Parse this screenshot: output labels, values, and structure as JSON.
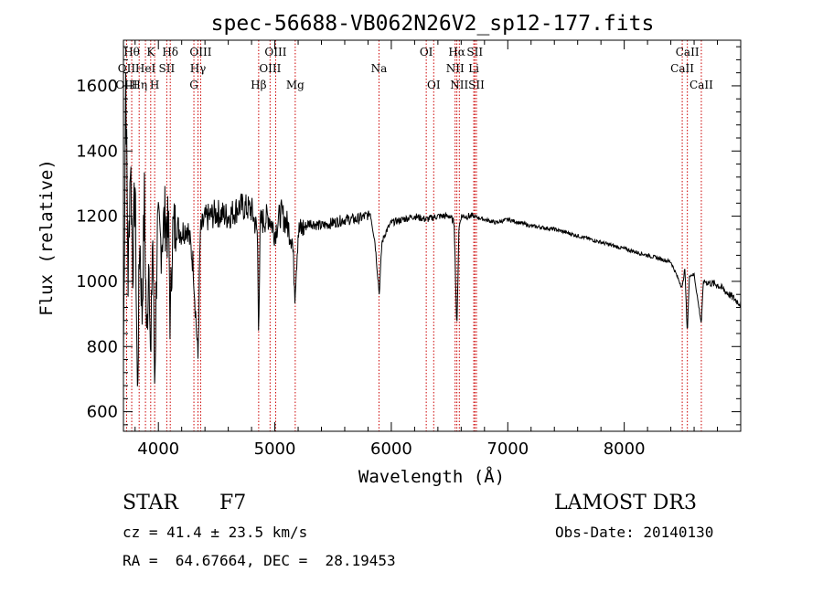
{
  "chart_data": {
    "type": "line",
    "title": "spec-56688-VB062N26V2_sp12-177.fits",
    "xlabel": "Wavelength (Å)",
    "ylabel": "Flux (relative)",
    "xlim": [
      3700,
      9000
    ],
    "ylim": [
      540,
      1740
    ],
    "xticks": [
      4000,
      5000,
      6000,
      7000,
      8000
    ],
    "yticks": [
      600,
      800,
      1000,
      1200,
      1400,
      1600
    ],
    "spectrum_anchor_points": [
      [
        3700,
        760
      ],
      [
        3720,
        1640
      ],
      [
        3740,
        1000
      ],
      [
        3760,
        1380
      ],
      [
        3780,
        1050
      ],
      [
        3800,
        1300
      ],
      [
        3820,
        640
      ],
      [
        3840,
        1150
      ],
      [
        3860,
        900
      ],
      [
        3880,
        1250
      ],
      [
        3900,
        800
      ],
      [
        3920,
        1130
      ],
      [
        3934,
        690
      ],
      [
        3950,
        1180
      ],
      [
        3968,
        700
      ],
      [
        3990,
        1150
      ],
      [
        4020,
        1120
      ],
      [
        4060,
        1200
      ],
      [
        4090,
        1130
      ],
      [
        4102,
        860
      ],
      [
        4120,
        1150
      ],
      [
        4160,
        1170
      ],
      [
        4200,
        1150
      ],
      [
        4250,
        1170
      ],
      [
        4300,
        1050
      ],
      [
        4320,
        900
      ],
      [
        4340,
        760
      ],
      [
        4360,
        1150
      ],
      [
        4400,
        1190
      ],
      [
        4500,
        1210
      ],
      [
        4600,
        1200
      ],
      [
        4700,
        1230
      ],
      [
        4800,
        1220
      ],
      [
        4850,
        1150
      ],
      [
        4861,
        860
      ],
      [
        4875,
        1180
      ],
      [
        4950,
        1200
      ],
      [
        5000,
        1150
      ],
      [
        5050,
        1210
      ],
      [
        5100,
        1180
      ],
      [
        5150,
        1130
      ],
      [
        5172,
        970
      ],
      [
        5200,
        1150
      ],
      [
        5300,
        1180
      ],
      [
        5400,
        1170
      ],
      [
        5500,
        1180
      ],
      [
        5600,
        1190
      ],
      [
        5700,
        1190
      ],
      [
        5780,
        1200
      ],
      [
        5820,
        1210
      ],
      [
        5860,
        1120
      ],
      [
        5890,
        990
      ],
      [
        5896,
        960
      ],
      [
        5920,
        1120
      ],
      [
        5950,
        1150
      ],
      [
        6000,
        1180
      ],
      [
        6100,
        1190
      ],
      [
        6200,
        1200
      ],
      [
        6300,
        1190
      ],
      [
        6400,
        1200
      ],
      [
        6500,
        1200
      ],
      [
        6540,
        1180
      ],
      [
        6563,
        850
      ],
      [
        6580,
        1160
      ],
      [
        6600,
        1200
      ],
      [
        6700,
        1200
      ],
      [
        6800,
        1190
      ],
      [
        6900,
        1180
      ],
      [
        7000,
        1190
      ],
      [
        7200,
        1170
      ],
      [
        7400,
        1160
      ],
      [
        7600,
        1140
      ],
      [
        7800,
        1120
      ],
      [
        8000,
        1100
      ],
      [
        8200,
        1080
      ],
      [
        8400,
        1060
      ],
      [
        8498,
        980
      ],
      [
        8520,
        1040
      ],
      [
        8542,
        840
      ],
      [
        8560,
        1020
      ],
      [
        8600,
        1020
      ],
      [
        8662,
        870
      ],
      [
        8680,
        1000
      ],
      [
        8800,
        990
      ],
      [
        8900,
        960
      ],
      [
        9000,
        930
      ]
    ],
    "line_labels": [
      {
        "name": "OII",
        "wavelength": 3727,
        "row": 2
      },
      {
        "name": "Hθ",
        "wavelength": 3771,
        "row": 1
      },
      {
        "name": "OIII",
        "wavelength": 3727,
        "row": 3
      },
      {
        "name": "Hη",
        "wavelength": 3835,
        "row": 3
      },
      {
        "name": "HeI",
        "wavelength": 3889,
        "row": 2
      },
      {
        "name": "K",
        "wavelength": 3934,
        "row": 1
      },
      {
        "name": "SII",
        "wavelength": 4072,
        "row": 2
      },
      {
        "name": "H",
        "wavelength": 3968,
        "row": 3
      },
      {
        "name": "Hδ",
        "wavelength": 4102,
        "row": 1
      },
      {
        "name": "OIII",
        "wavelength": 4363,
        "row": 1
      },
      {
        "name": "Hγ",
        "wavelength": 4340,
        "row": 2
      },
      {
        "name": "G",
        "wavelength": 4305,
        "row": 3
      },
      {
        "name": "Hβ",
        "wavelength": 4861,
        "row": 3
      },
      {
        "name": "OIII",
        "wavelength": 5007,
        "row": 1
      },
      {
        "name": "OIII",
        "wavelength": 4959,
        "row": 2
      },
      {
        "name": "Mg",
        "wavelength": 5175,
        "row": 3
      },
      {
        "name": "Na",
        "wavelength": 5894,
        "row": 2
      },
      {
        "name": "OI",
        "wavelength": 6300,
        "row": 1
      },
      {
        "name": "OI",
        "wavelength": 6364,
        "row": 3
      },
      {
        "name": "Hα",
        "wavelength": 6563,
        "row": 1
      },
      {
        "name": "SII",
        "wavelength": 6717,
        "row": 1
      },
      {
        "name": "NII",
        "wavelength": 6548,
        "row": 2
      },
      {
        "name": "Li",
        "wavelength": 6708,
        "row": 2
      },
      {
        "name": "NII",
        "wavelength": 6584,
        "row": 3
      },
      {
        "name": "SII",
        "wavelength": 6731,
        "row": 3
      },
      {
        "name": "CaII",
        "wavelength": 8542,
        "row": 1
      },
      {
        "name": "CaII",
        "wavelength": 8498,
        "row": 2
      },
      {
        "name": "CaII",
        "wavelength": 8662,
        "row": 3
      }
    ],
    "line_color": "#000000",
    "marker_color": "#cc0000"
  },
  "info": {
    "object_class": "STAR",
    "subclass": "F7",
    "survey": "LAMOST DR3",
    "redshift": "cz = 41.4 ± 23.5 km/s",
    "obs_date": "Obs-Date: 20140130",
    "coords": "RA =  64.67664, DEC =  28.19453"
  }
}
